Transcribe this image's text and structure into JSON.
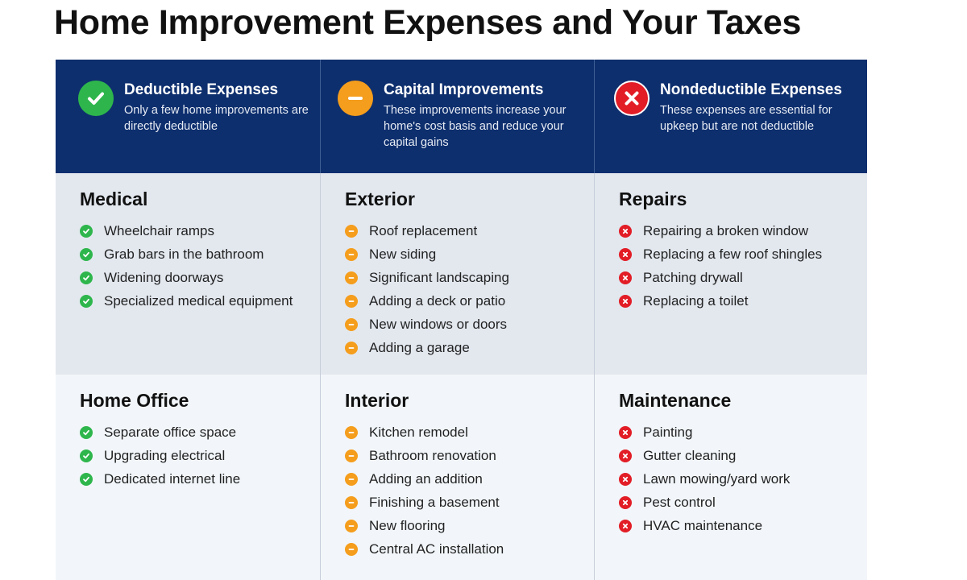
{
  "title": "Home Improvement Expenses and Your Taxes",
  "colors": {
    "header_bg": "#0e2f6e",
    "row1_bg": "#e3e8ef",
    "row2_bg": "#f2f6fa",
    "deductible": "#2eb64c",
    "capital": "#f59d1c",
    "nondeductible": "#e21d26"
  },
  "columns": [
    {
      "icon": "check-circle-icon",
      "title": "Deductible Expenses",
      "description": "Only a few home improvements are directly deductible",
      "groups": [
        {
          "title": "Medical",
          "items": [
            "Wheelchair ramps",
            "Grab bars in the bathroom",
            "Widening doorways",
            "Specialized medical equipment"
          ]
        },
        {
          "title": "Home Office",
          "items": [
            "Separate office space",
            "Upgrading electrical",
            "Dedicated internet line"
          ]
        }
      ]
    },
    {
      "icon": "minus-circle-icon",
      "title": "Capital Improvements",
      "description": "These improvements increase your home's cost basis and reduce your capital gains",
      "groups": [
        {
          "title": "Exterior",
          "items": [
            "Roof replacement",
            "New siding",
            "Significant landscaping",
            "Adding a deck or patio",
            "New windows or doors",
            "Adding a garage"
          ]
        },
        {
          "title": "Interior",
          "items": [
            "Kitchen remodel",
            "Bathroom renovation",
            "Adding an addition",
            "Finishing a basement",
            "New flooring",
            "Central AC installation"
          ]
        }
      ]
    },
    {
      "icon": "x-circle-icon",
      "title": "Nondeductible Expenses",
      "description": "These expenses are essential for upkeep but are not deductible",
      "groups": [
        {
          "title": "Repairs",
          "items": [
            "Repairing a broken window",
            "Replacing a few roof shingles",
            "Patching drywall",
            "Replacing a toilet"
          ]
        },
        {
          "title": "Maintenance",
          "items": [
            "Painting",
            "Gutter cleaning",
            "Lawn mowing/yard work",
            "Pest control",
            "HVAC maintenance"
          ]
        }
      ]
    }
  ]
}
